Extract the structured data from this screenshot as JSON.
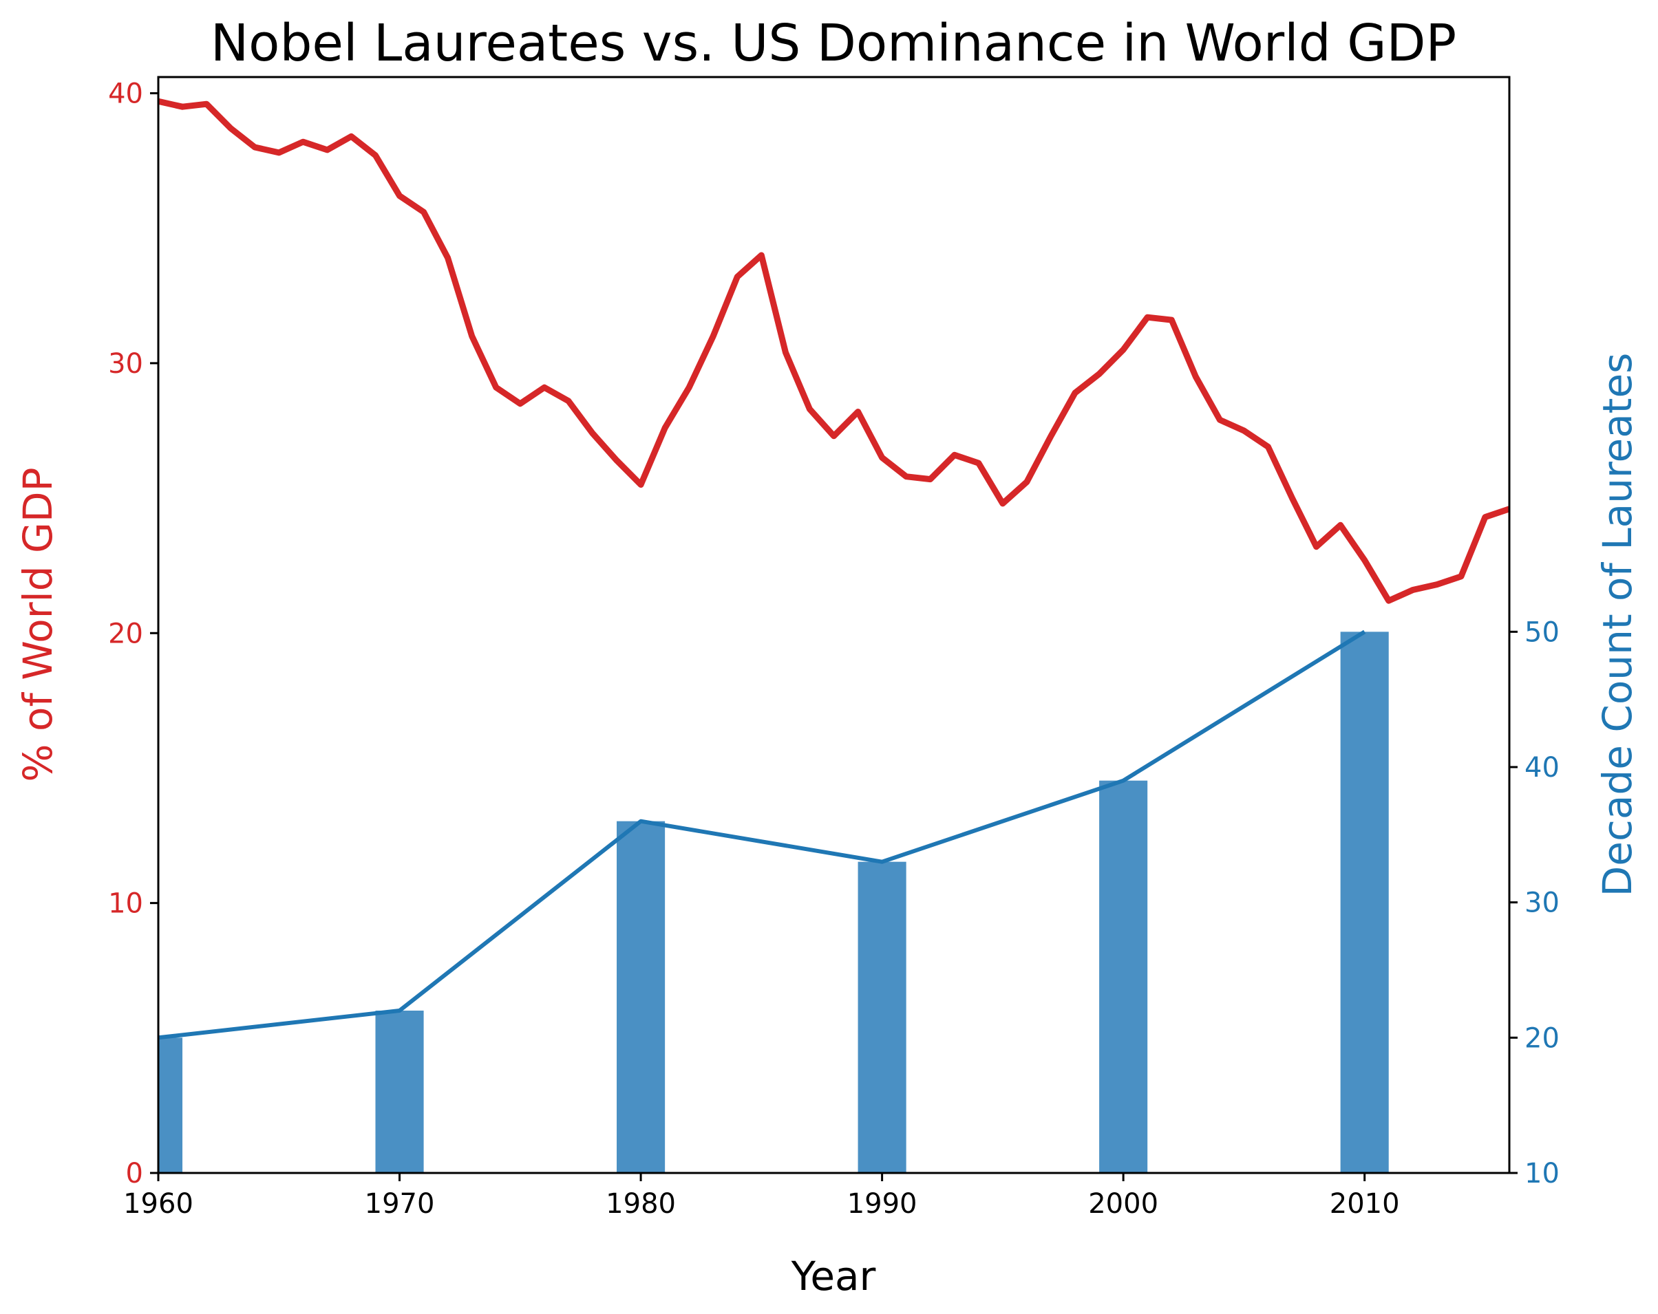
{
  "chart_data": {
    "type": "line",
    "title": "Nobel Laureates vs. US Dominance in World GDP",
    "xlabel": "Year",
    "xlim": [
      1960,
      2016
    ],
    "x_ticks": [
      1960,
      1970,
      1980,
      1990,
      2000,
      2010
    ],
    "colors": {
      "gdp": "#d62728",
      "laureates": "#1f77b4",
      "bar": "#4a90c4"
    },
    "left_axis": {
      "label": "% of World GDP",
      "ylim": [
        0,
        40.6
      ],
      "ticks": [
        0,
        10,
        20,
        30,
        40
      ]
    },
    "right_axis": {
      "label": "Decade Count of Laureates",
      "ylim": [
        10,
        91
      ],
      "ticks": [
        10,
        20,
        30,
        40,
        50
      ]
    },
    "gdp_series": {
      "x": [
        1960,
        1961,
        1962,
        1963,
        1964,
        1965,
        1966,
        1967,
        1968,
        1969,
        1970,
        1971,
        1972,
        1973,
        1974,
        1975,
        1976,
        1977,
        1978,
        1979,
        1980,
        1981,
        1982,
        1983,
        1984,
        1985,
        1986,
        1987,
        1988,
        1989,
        1990,
        1991,
        1992,
        1993,
        1994,
        1995,
        1996,
        1997,
        1998,
        1999,
        2000,
        2001,
        2002,
        2003,
        2004,
        2005,
        2006,
        2007,
        2008,
        2009,
        2010,
        2011,
        2012,
        2013,
        2014,
        2015,
        2016
      ],
      "values": [
        39.7,
        39.5,
        39.6,
        38.7,
        38.0,
        37.8,
        38.2,
        37.9,
        38.4,
        37.7,
        36.2,
        35.6,
        33.9,
        31.0,
        29.1,
        28.5,
        29.1,
        28.6,
        27.4,
        26.4,
        25.5,
        27.6,
        29.1,
        31.0,
        33.2,
        34.0,
        30.4,
        28.3,
        27.3,
        28.2,
        26.5,
        25.8,
        25.7,
        26.6,
        26.3,
        24.8,
        25.6,
        27.3,
        28.9,
        29.6,
        30.5,
        31.7,
        31.6,
        29.5,
        27.9,
        27.5,
        26.9,
        25.0,
        23.2,
        24.0,
        22.7,
        21.2,
        21.6,
        21.8,
        22.1,
        24.3,
        24.6
      ]
    },
    "laureate_series": {
      "x": [
        1960,
        1970,
        1980,
        1990,
        2000,
        2010
      ],
      "values": [
        20,
        22,
        36,
        33,
        39,
        50
      ]
    }
  }
}
